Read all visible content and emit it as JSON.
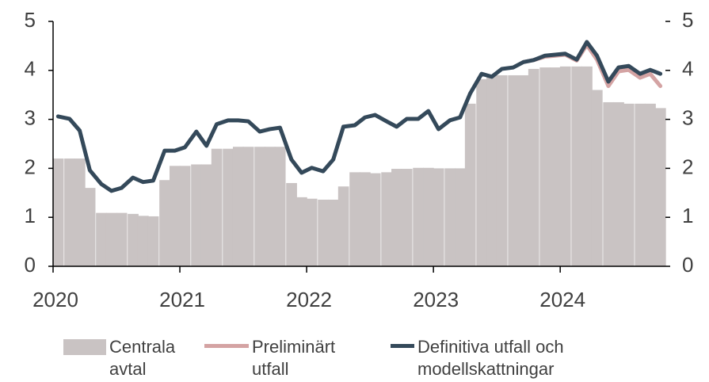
{
  "chart_data": {
    "type": "line",
    "x": [
      2020.04,
      2020.13,
      2020.21,
      2020.29,
      2020.38,
      2020.46,
      2020.54,
      2020.63,
      2020.71,
      2020.79,
      2020.88,
      2020.96,
      2021.04,
      2021.13,
      2021.21,
      2021.29,
      2021.38,
      2021.46,
      2021.54,
      2021.63,
      2021.71,
      2021.79,
      2021.88,
      2021.96,
      2022.04,
      2022.13,
      2022.21,
      2022.29,
      2022.38,
      2022.46,
      2022.54,
      2022.63,
      2022.71,
      2022.79,
      2022.88,
      2022.96,
      2023.04,
      2023.13,
      2023.21,
      2023.29,
      2023.38,
      2023.46,
      2023.54,
      2023.63,
      2023.71,
      2023.79,
      2023.88,
      2023.96,
      2024.04,
      2024.13,
      2024.21,
      2024.29,
      2024.38,
      2024.46,
      2024.54,
      2024.63,
      2024.71,
      2024.79
    ],
    "series": [
      {
        "name": "Centrala avtal",
        "type": "bar",
        "color": "#c9c3c3",
        "values": [
          2.2,
          2.2,
          2.2,
          1.6,
          1.09,
          1.09,
          1.09,
          1.07,
          1.03,
          1.02,
          1.76,
          2.05,
          2.05,
          2.08,
          2.08,
          2.4,
          2.4,
          2.44,
          2.44,
          2.44,
          2.44,
          2.44,
          1.7,
          1.41,
          1.38,
          1.36,
          1.36,
          1.63,
          1.92,
          1.92,
          1.9,
          1.92,
          1.99,
          1.99,
          2.01,
          2.01,
          2.0,
          2.0,
          2.0,
          3.32,
          3.82,
          3.9,
          3.9,
          3.9,
          3.9,
          4.03,
          4.06,
          4.06,
          4.08,
          4.08,
          4.08,
          3.6,
          3.35,
          3.35,
          3.32,
          3.32,
          3.32,
          3.23
        ]
      },
      {
        "name": "Preliminärt utfall",
        "type": "line",
        "color": "#d4a3a3",
        "values": [
          null,
          null,
          null,
          null,
          null,
          null,
          null,
          null,
          null,
          null,
          null,
          null,
          null,
          null,
          null,
          null,
          null,
          null,
          null,
          null,
          null,
          null,
          null,
          null,
          null,
          null,
          null,
          null,
          null,
          null,
          null,
          null,
          null,
          null,
          null,
          null,
          null,
          null,
          null,
          null,
          null,
          null,
          null,
          null,
          4.17,
          4.21,
          4.28,
          4.3,
          4.32,
          4.2,
          4.52,
          4.22,
          3.68,
          3.98,
          4.01,
          3.85,
          3.93,
          3.68
        ]
      },
      {
        "name": "Definitiva utfall och modellskattningar",
        "type": "line",
        "color": "#34495a",
        "values": [
          3.06,
          3.01,
          2.77,
          1.96,
          1.68,
          1.54,
          1.6,
          1.81,
          1.72,
          1.75,
          2.36,
          2.36,
          2.43,
          2.75,
          2.46,
          2.9,
          2.98,
          2.98,
          2.96,
          2.75,
          2.8,
          2.83,
          2.18,
          1.91,
          2.01,
          1.94,
          2.18,
          2.85,
          2.88,
          3.04,
          3.09,
          2.96,
          2.85,
          3.01,
          3.01,
          3.17,
          2.8,
          2.98,
          3.04,
          3.53,
          3.93,
          3.87,
          4.03,
          4.06,
          4.17,
          4.21,
          4.3,
          4.32,
          4.34,
          4.22,
          4.58,
          4.3,
          3.77,
          4.06,
          4.09,
          3.93,
          4.01,
          3.93
        ]
      }
    ],
    "xlim": [
      2020,
      2024.83
    ],
    "xticks": [
      2020,
      2021,
      2022,
      2023,
      2024
    ],
    "ylim": [
      0,
      5
    ],
    "yticks": [
      0,
      1,
      2,
      3,
      4,
      5
    ],
    "y2lim": [
      0,
      5
    ],
    "y2ticks": [
      0,
      1,
      2,
      3,
      4,
      5
    ]
  }
}
